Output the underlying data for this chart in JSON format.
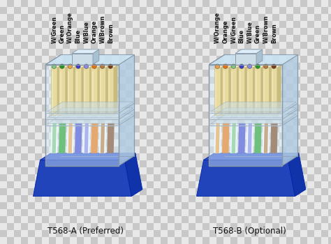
{
  "title_A": "T568-A (Preferred)",
  "title_B": "T568-B (Optional)",
  "labels_A": [
    "W/Green",
    "Green",
    "W/Orange",
    "Blue",
    "W/Blue",
    "Orange",
    "W/Brown",
    "Brown"
  ],
  "labels_B": [
    "W/Orange",
    "Orange",
    "W/Green",
    "Blue",
    "W/Blue",
    "Green",
    "W/Brown",
    "Brown"
  ],
  "wire_colors_A": [
    "#7ec87e",
    "#1a9a1a",
    "#f5a040",
    "#3a3acc",
    "#8888ee",
    "#f07000",
    "#bb7733",
    "#7a3a10"
  ],
  "wire_colors_B": [
    "#f5a040",
    "#f07000",
    "#7ec87e",
    "#3a3acc",
    "#8888ee",
    "#1a9a1a",
    "#bb7733",
    "#7a3a10"
  ],
  "pin_color": "#e8dba0",
  "pin_shadow": "#c8bb80",
  "pin_highlight": "#f8eecc",
  "body_front": "#d8eef8",
  "body_right": "#b0cce0",
  "body_top": "#c8e4f4",
  "body_edge": "#8899aa",
  "base_front": "#2244bb",
  "base_top": "#3355cc",
  "base_right": "#1133aa",
  "tab_color": "#ccdde8",
  "tab_top": "#ddeef8",
  "shelf_color": "#aabbcc",
  "check_light": "#e8e8e8",
  "check_dark": "#c8c8c8"
}
